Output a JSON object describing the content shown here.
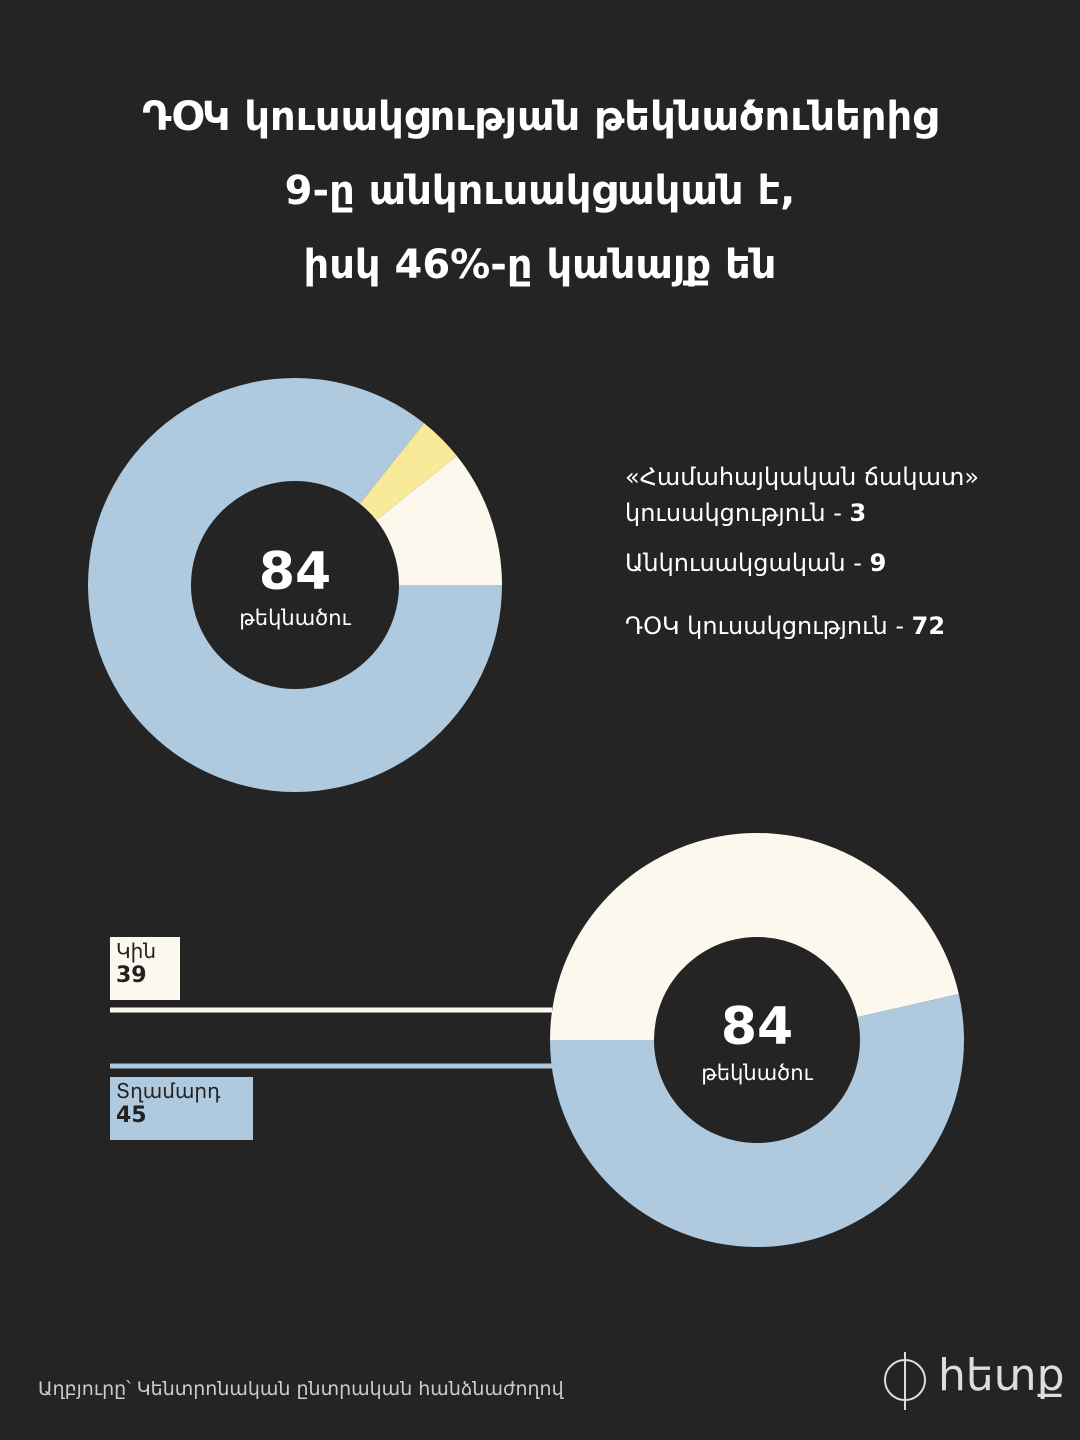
{
  "title": [
    "ԴՕԿ կուսակցության թեկնածուներից",
    "9-ը անկուսակցական է,",
    "իսկ 46%-ը կանայք են"
  ],
  "chart_data": [
    {
      "type": "donut",
      "total": 84,
      "total_label": "թեկնածու",
      "categories": [
        "«Համահայկական ճակատ» կուսակցություն",
        "Անկուսակցական",
        "ԴՕԿ կուսակցություն"
      ],
      "values": [
        3,
        9,
        72
      ],
      "colors": [
        "#f8ea98",
        "#fdf8ee",
        "#afc9df"
      ],
      "legend_separator": " - "
    },
    {
      "type": "donut",
      "total": 84,
      "total_label": "թեկնածու",
      "categories": [
        "Կին",
        "Տղամարդ"
      ],
      "values": [
        39,
        45
      ],
      "colors": [
        "#fdf8ee",
        "#afc9df"
      ]
    }
  ],
  "source": "Աղբյուրը՝ Կենտրոնական ընտրական հանձնաժողով",
  "logo": "հետք"
}
